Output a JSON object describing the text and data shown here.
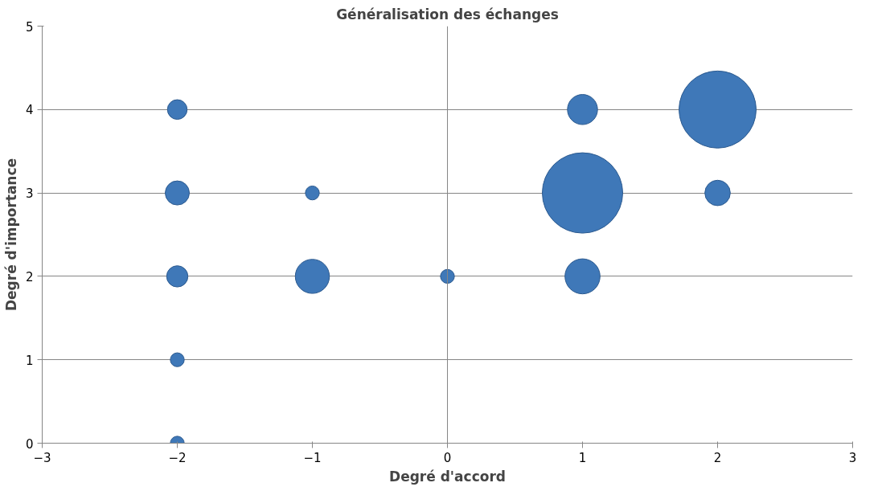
{
  "chart_data": {
    "type": "bubble",
    "title": "Généralisation des échanges",
    "xlabel": "Degré d'accord",
    "ylabel": "Degré d'importance",
    "x": [
      -2,
      -2,
      -2,
      -2,
      -2,
      -1,
      -1,
      0,
      1,
      1,
      1,
      2,
      2
    ],
    "series": [
      {
        "color": "#3f78b8",
        "values": [
          4,
          3,
          2,
          1,
          0,
          3,
          2,
          2,
          4,
          3,
          2,
          4,
          3
        ],
        "sizes": [
          0.06,
          0.09,
          0.07,
          0.03,
          0.03,
          0.03,
          0.18,
          0.03,
          0.14,
          1,
          0.19,
          0.92,
          0.1
        ]
      }
    ],
    "xlim": [
      -3,
      3
    ],
    "xticks": [
      -3,
      -2,
      -1,
      0,
      1,
      2,
      3
    ],
    "ylim": [
      0,
      5
    ],
    "yticks": [
      0,
      1,
      2,
      3,
      4,
      5
    ],
    "grid": "y",
    "ref_lines": [
      {
        "axis": "x",
        "value": 0,
        "color": "#868686"
      }
    ]
  }
}
